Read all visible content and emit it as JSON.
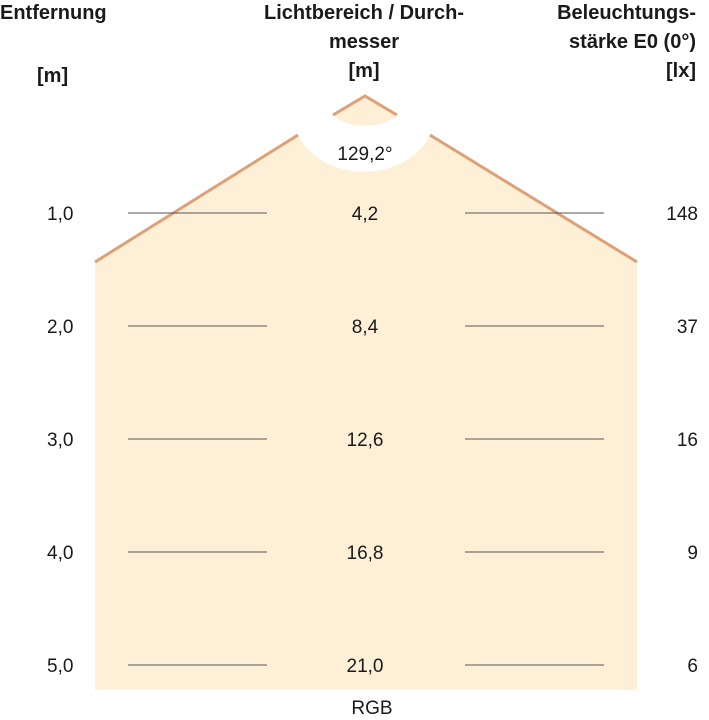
{
  "headers": {
    "distance": [
      "Entfernung",
      "[m]"
    ],
    "diameter": [
      "Lichtbereich / Durch-",
      "messer",
      "[m]"
    ],
    "illuminance": [
      "Beleuchtungs-",
      "stärke E0 (0°)",
      "[lx]"
    ]
  },
  "beam_angle": "129,2°",
  "rows": [
    {
      "distance": "1,0",
      "diameter": "4,2",
      "lux": "148"
    },
    {
      "distance": "2,0",
      "diameter": "8,4",
      "lux": "37"
    },
    {
      "distance": "3,0",
      "diameter": "12,6",
      "lux": "16"
    },
    {
      "distance": "4,0",
      "diameter": "16,8",
      "lux": "9"
    },
    {
      "distance": "5,0",
      "diameter": "21,0",
      "lux": "6"
    }
  ],
  "footer": "RGB",
  "colors": {
    "beam_fill": "#fdf0d6",
    "beam_edge": "#e0a077",
    "line": "#555555"
  }
}
